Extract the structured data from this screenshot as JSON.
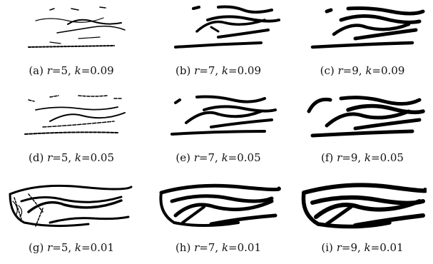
{
  "figure": {
    "panels": [
      {
        "label": "(a)",
        "r": "5",
        "k": "0.09"
      },
      {
        "label": "(b)",
        "r": "7",
        "k": "0.09"
      },
      {
        "label": "(c)",
        "r": "9",
        "k": "0.09"
      },
      {
        "label": "(d)",
        "r": "5",
        "k": "0.05"
      },
      {
        "label": "(e)",
        "r": "7",
        "k": "0.05"
      },
      {
        "label": "(f)",
        "r": "9",
        "k": "0.05"
      },
      {
        "label": "(g)",
        "r": "5",
        "k": "0.01"
      },
      {
        "label": "(h)",
        "r": "7",
        "k": "0.01"
      },
      {
        "label": "(i)",
        "r": "9",
        "k": "0.01"
      }
    ],
    "symbols": {
      "r": "r",
      "k": "k",
      "eq": "=",
      "sep": ", "
    }
  }
}
